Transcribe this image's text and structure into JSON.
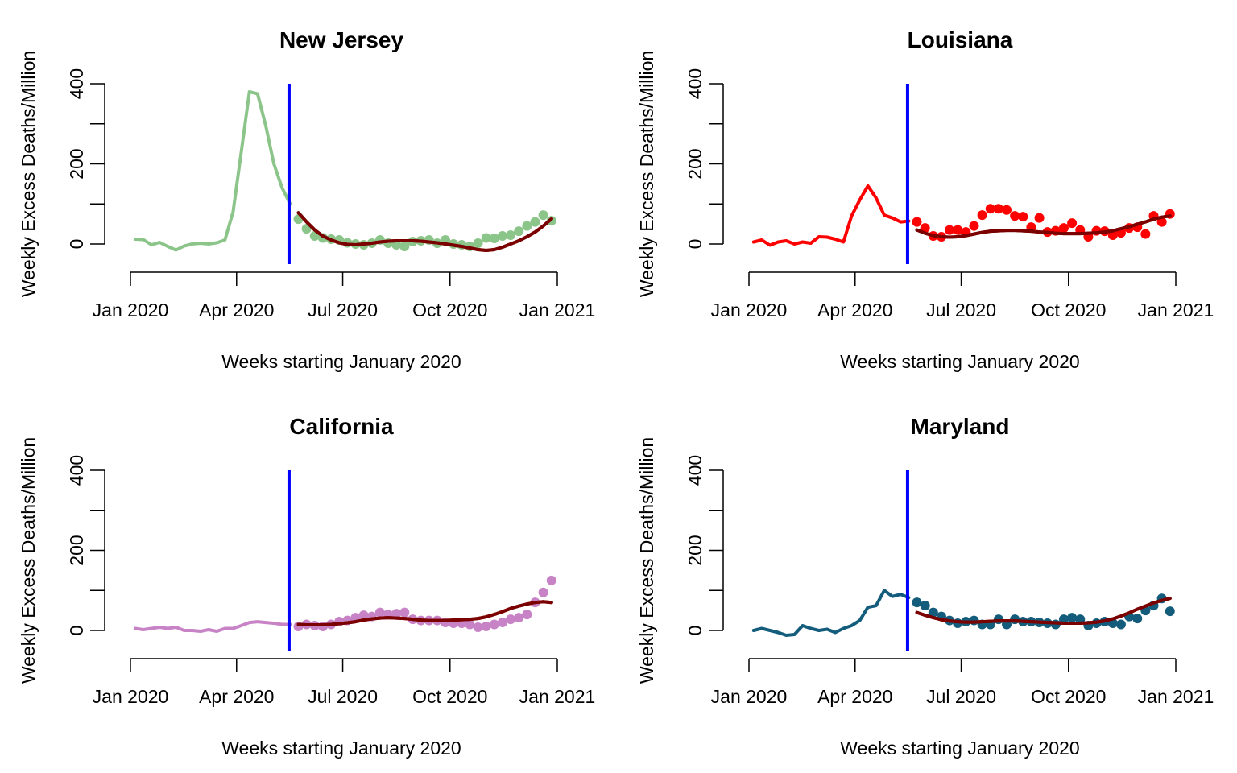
{
  "chart_data": [
    {
      "type": "line",
      "title": "New Jersey",
      "xlabel": "Weeks starting January 2020",
      "ylabel": "Weekly Excess Deaths/Million",
      "x_ticks": [
        "Jan 2020",
        "Apr 2020",
        "Jul 2020",
        "Oct 2020",
        "Jan 2021"
      ],
      "y_ticks": [
        "0",
        "200",
        "400"
      ],
      "xlim": [
        "2020-01-01",
        "2021-01-01"
      ],
      "ylim": [
        -50,
        400
      ],
      "vline_date": "2020-05-16",
      "colors": {
        "observed": "#8cc58a",
        "fit": "#7b0000",
        "vline": "#0000ff"
      },
      "series": [
        {
          "kind": "observed-line",
          "x": [
            "2020-01-05",
            "2020-01-12",
            "2020-01-19",
            "2020-01-26",
            "2020-02-02",
            "2020-02-09",
            "2020-02-16",
            "2020-02-23",
            "2020-03-01",
            "2020-03-08",
            "2020-03-15",
            "2020-03-22",
            "2020-03-29",
            "2020-04-05",
            "2020-04-12",
            "2020-04-19",
            "2020-04-26",
            "2020-05-03",
            "2020-05-10",
            "2020-05-17"
          ],
          "values": [
            12,
            11,
            -2,
            4,
            -6,
            -15,
            -5,
            0,
            2,
            0,
            3,
            10,
            80,
            230,
            380,
            375,
            295,
            200,
            140,
            100
          ]
        },
        {
          "kind": "observed-points",
          "x": [
            "2020-05-24",
            "2020-05-31",
            "2020-06-07",
            "2020-06-14",
            "2020-06-21",
            "2020-06-28",
            "2020-07-05",
            "2020-07-12",
            "2020-07-19",
            "2020-07-26",
            "2020-08-02",
            "2020-08-09",
            "2020-08-16",
            "2020-08-23",
            "2020-08-30",
            "2020-09-06",
            "2020-09-13",
            "2020-09-20",
            "2020-09-27",
            "2020-10-04",
            "2020-10-11",
            "2020-10-18",
            "2020-10-25",
            "2020-11-01",
            "2020-11-08",
            "2020-11-15",
            "2020-11-22",
            "2020-11-29",
            "2020-12-06",
            "2020-12-13",
            "2020-12-20",
            "2020-12-27"
          ],
          "values": [
            62,
            38,
            20,
            15,
            12,
            10,
            3,
            0,
            -2,
            2,
            10,
            2,
            -2,
            -6,
            6,
            8,
            10,
            2,
            10,
            0,
            -2,
            -6,
            2,
            15,
            14,
            20,
            22,
            32,
            45,
            55,
            72,
            58
          ]
        },
        {
          "kind": "fit-line",
          "x": [
            "2020-05-24",
            "2020-05-31",
            "2020-06-07",
            "2020-06-14",
            "2020-06-21",
            "2020-06-28",
            "2020-07-05",
            "2020-07-12",
            "2020-07-19",
            "2020-07-26",
            "2020-08-02",
            "2020-08-09",
            "2020-08-16",
            "2020-08-23",
            "2020-08-30",
            "2020-09-06",
            "2020-09-13",
            "2020-09-20",
            "2020-09-27",
            "2020-10-04",
            "2020-10-11",
            "2020-10-18",
            "2020-10-25",
            "2020-11-01",
            "2020-11-08",
            "2020-11-15",
            "2020-11-22",
            "2020-11-29",
            "2020-12-06",
            "2020-12-13",
            "2020-12-20",
            "2020-12-27"
          ],
          "values": [
            78,
            55,
            35,
            20,
            10,
            3,
            -1,
            -2,
            0,
            2,
            5,
            7,
            8,
            8,
            8,
            7,
            5,
            3,
            0,
            -3,
            -6,
            -10,
            -14,
            -16,
            -14,
            -8,
            0,
            8,
            18,
            30,
            45,
            63
          ]
        }
      ]
    },
    {
      "type": "line",
      "title": "Louisiana",
      "xlabel": "Weeks starting January 2020",
      "ylabel": "Weekly Excess Deaths/Million",
      "x_ticks": [
        "Jan 2020",
        "Apr 2020",
        "Jul 2020",
        "Oct 2020",
        "Jan 2021"
      ],
      "y_ticks": [
        "0",
        "200",
        "400"
      ],
      "xlim": [
        "2020-01-01",
        "2021-01-01"
      ],
      "ylim": [
        -50,
        400
      ],
      "vline_date": "2020-05-16",
      "colors": {
        "observed": "#ff0000",
        "fit": "#7b0000",
        "vline": "#0000ff"
      },
      "series": [
        {
          "kind": "observed-line",
          "x": [
            "2020-01-05",
            "2020-01-12",
            "2020-01-19",
            "2020-01-26",
            "2020-02-02",
            "2020-02-09",
            "2020-02-16",
            "2020-02-23",
            "2020-03-01",
            "2020-03-08",
            "2020-03-15",
            "2020-03-22",
            "2020-03-29",
            "2020-04-05",
            "2020-04-12",
            "2020-04-19",
            "2020-04-26",
            "2020-05-03",
            "2020-05-10",
            "2020-05-17"
          ],
          "values": [
            5,
            10,
            -3,
            5,
            8,
            0,
            5,
            2,
            18,
            17,
            12,
            5,
            70,
            110,
            145,
            115,
            72,
            65,
            55,
            57
          ]
        },
        {
          "kind": "observed-points",
          "x": [
            "2020-05-24",
            "2020-05-31",
            "2020-06-07",
            "2020-06-14",
            "2020-06-21",
            "2020-06-28",
            "2020-07-05",
            "2020-07-12",
            "2020-07-19",
            "2020-07-26",
            "2020-08-02",
            "2020-08-09",
            "2020-08-16",
            "2020-08-23",
            "2020-08-30",
            "2020-09-06",
            "2020-09-13",
            "2020-09-20",
            "2020-09-27",
            "2020-10-04",
            "2020-10-11",
            "2020-10-18",
            "2020-10-25",
            "2020-11-01",
            "2020-11-08",
            "2020-11-15",
            "2020-11-22",
            "2020-11-29",
            "2020-12-06",
            "2020-12-13",
            "2020-12-20",
            "2020-12-27"
          ],
          "values": [
            55,
            40,
            20,
            18,
            35,
            35,
            30,
            45,
            72,
            88,
            88,
            85,
            70,
            68,
            42,
            65,
            30,
            33,
            40,
            52,
            35,
            18,
            33,
            32,
            22,
            28,
            40,
            42,
            25,
            70,
            55,
            75
          ]
        },
        {
          "kind": "fit-line",
          "x": [
            "2020-05-24",
            "2020-05-31",
            "2020-06-07",
            "2020-06-14",
            "2020-06-21",
            "2020-06-28",
            "2020-07-05",
            "2020-07-12",
            "2020-07-19",
            "2020-07-26",
            "2020-08-02",
            "2020-08-09",
            "2020-08-16",
            "2020-08-23",
            "2020-08-30",
            "2020-09-06",
            "2020-09-13",
            "2020-09-20",
            "2020-09-27",
            "2020-10-04",
            "2020-10-11",
            "2020-10-18",
            "2020-10-25",
            "2020-11-01",
            "2020-11-08",
            "2020-11-15",
            "2020-11-22",
            "2020-11-29",
            "2020-12-06",
            "2020-12-13",
            "2020-12-20",
            "2020-12-27"
          ],
          "values": [
            35,
            27,
            21,
            18,
            17,
            18,
            21,
            25,
            29,
            32,
            33,
            34,
            34,
            33,
            32,
            30,
            29,
            27,
            26,
            26,
            26,
            27,
            28,
            30,
            33,
            38,
            43,
            49,
            55,
            62,
            67,
            70
          ]
        }
      ]
    },
    {
      "type": "line",
      "title": "California",
      "xlabel": "Weeks starting January 2020",
      "ylabel": "Weekly Excess Deaths/Million",
      "x_ticks": [
        "Jan 2020",
        "Apr 2020",
        "Jul 2020",
        "Oct 2020",
        "Jan 2021"
      ],
      "y_ticks": [
        "0",
        "200",
        "400"
      ],
      "xlim": [
        "2020-01-01",
        "2021-01-01"
      ],
      "ylim": [
        -50,
        400
      ],
      "vline_date": "2020-05-16",
      "colors": {
        "observed": "#c783c6",
        "fit": "#7b0000",
        "vline": "#0000ff"
      },
      "series": [
        {
          "kind": "observed-line",
          "x": [
            "2020-01-05",
            "2020-01-12",
            "2020-01-19",
            "2020-01-26",
            "2020-02-02",
            "2020-02-09",
            "2020-02-16",
            "2020-02-23",
            "2020-03-01",
            "2020-03-08",
            "2020-03-15",
            "2020-03-22",
            "2020-03-29",
            "2020-04-05",
            "2020-04-12",
            "2020-04-19",
            "2020-04-26",
            "2020-05-03",
            "2020-05-10",
            "2020-05-17"
          ],
          "values": [
            5,
            2,
            5,
            8,
            5,
            8,
            0,
            0,
            -2,
            2,
            -2,
            5,
            5,
            12,
            20,
            22,
            20,
            18,
            15,
            15
          ]
        },
        {
          "kind": "observed-points",
          "x": [
            "2020-05-24",
            "2020-05-31",
            "2020-06-07",
            "2020-06-14",
            "2020-06-21",
            "2020-06-28",
            "2020-07-05",
            "2020-07-12",
            "2020-07-19",
            "2020-07-26",
            "2020-08-02",
            "2020-08-09",
            "2020-08-16",
            "2020-08-23",
            "2020-08-30",
            "2020-09-06",
            "2020-09-13",
            "2020-09-20",
            "2020-09-27",
            "2020-10-04",
            "2020-10-11",
            "2020-10-18",
            "2020-10-25",
            "2020-11-01",
            "2020-11-08",
            "2020-11-15",
            "2020-11-22",
            "2020-11-29",
            "2020-12-06",
            "2020-12-13",
            "2020-12-20",
            "2020-12-27"
          ],
          "values": [
            10,
            15,
            12,
            10,
            15,
            22,
            25,
            32,
            38,
            35,
            45,
            40,
            42,
            45,
            28,
            25,
            25,
            25,
            20,
            18,
            18,
            15,
            8,
            10,
            15,
            20,
            28,
            32,
            40,
            70,
            95,
            125
          ]
        },
        {
          "kind": "fit-line",
          "x": [
            "2020-05-24",
            "2020-05-31",
            "2020-06-07",
            "2020-06-14",
            "2020-06-21",
            "2020-06-28",
            "2020-07-05",
            "2020-07-12",
            "2020-07-19",
            "2020-07-26",
            "2020-08-02",
            "2020-08-09",
            "2020-08-16",
            "2020-08-23",
            "2020-08-30",
            "2020-09-06",
            "2020-09-13",
            "2020-09-20",
            "2020-09-27",
            "2020-10-04",
            "2020-10-11",
            "2020-10-18",
            "2020-10-25",
            "2020-11-01",
            "2020-11-08",
            "2020-11-15",
            "2020-11-22",
            "2020-11-29",
            "2020-12-06",
            "2020-12-13",
            "2020-12-20",
            "2020-12-27"
          ],
          "values": [
            15,
            14,
            14,
            14,
            15,
            17,
            19,
            22,
            26,
            29,
            31,
            32,
            31,
            30,
            28,
            26,
            25,
            25,
            25,
            26,
            27,
            28,
            30,
            34,
            40,
            47,
            55,
            61,
            66,
            70,
            72,
            70
          ]
        }
      ]
    },
    {
      "type": "line",
      "title": "Maryland",
      "xlabel": "Weeks starting January 2020",
      "ylabel": "Weekly Excess Deaths/Million",
      "x_ticks": [
        "Jan 2020",
        "Apr 2020",
        "Jul 2020",
        "Oct 2020",
        "Jan 2021"
      ],
      "y_ticks": [
        "0",
        "200",
        "400"
      ],
      "xlim": [
        "2020-01-01",
        "2021-01-01"
      ],
      "ylim": [
        -50,
        400
      ],
      "vline_date": "2020-05-16",
      "colors": {
        "observed": "#135c7c",
        "fit": "#7b0000",
        "vline": "#0000ff"
      },
      "series": [
        {
          "kind": "observed-line",
          "x": [
            "2020-01-05",
            "2020-01-12",
            "2020-01-19",
            "2020-01-26",
            "2020-02-02",
            "2020-02-09",
            "2020-02-16",
            "2020-02-23",
            "2020-03-01",
            "2020-03-08",
            "2020-03-15",
            "2020-03-22",
            "2020-03-29",
            "2020-04-05",
            "2020-04-12",
            "2020-04-19",
            "2020-04-26",
            "2020-05-03",
            "2020-05-10",
            "2020-05-17"
          ],
          "values": [
            0,
            5,
            0,
            -5,
            -12,
            -10,
            12,
            5,
            0,
            3,
            -5,
            5,
            12,
            25,
            58,
            62,
            100,
            85,
            90,
            82
          ]
        },
        {
          "kind": "observed-points",
          "x": [
            "2020-05-24",
            "2020-05-31",
            "2020-06-07",
            "2020-06-14",
            "2020-06-21",
            "2020-06-28",
            "2020-07-05",
            "2020-07-12",
            "2020-07-19",
            "2020-07-26",
            "2020-08-02",
            "2020-08-09",
            "2020-08-16",
            "2020-08-23",
            "2020-08-30",
            "2020-09-06",
            "2020-09-13",
            "2020-09-20",
            "2020-09-27",
            "2020-10-04",
            "2020-10-11",
            "2020-10-18",
            "2020-10-25",
            "2020-11-01",
            "2020-11-08",
            "2020-11-15",
            "2020-11-22",
            "2020-11-29",
            "2020-12-06",
            "2020-12-13",
            "2020-12-20",
            "2020-12-27"
          ],
          "values": [
            70,
            62,
            45,
            35,
            25,
            18,
            22,
            25,
            15,
            15,
            28,
            15,
            28,
            22,
            22,
            20,
            18,
            15,
            28,
            32,
            28,
            12,
            18,
            22,
            18,
            15,
            35,
            30,
            50,
            62,
            80,
            48
          ]
        },
        {
          "kind": "fit-line",
          "x": [
            "2020-05-24",
            "2020-05-31",
            "2020-06-07",
            "2020-06-14",
            "2020-06-21",
            "2020-06-28",
            "2020-07-05",
            "2020-07-12",
            "2020-07-19",
            "2020-07-26",
            "2020-08-02",
            "2020-08-09",
            "2020-08-16",
            "2020-08-23",
            "2020-08-30",
            "2020-09-06",
            "2020-09-13",
            "2020-09-20",
            "2020-09-27",
            "2020-10-04",
            "2020-10-11",
            "2020-10-18",
            "2020-10-25",
            "2020-11-01",
            "2020-11-08",
            "2020-11-15",
            "2020-11-22",
            "2020-11-29",
            "2020-12-06",
            "2020-12-13",
            "2020-12-20",
            "2020-12-27"
          ],
          "values": [
            45,
            38,
            32,
            27,
            24,
            22,
            21,
            21,
            22,
            23,
            24,
            24,
            24,
            23,
            22,
            21,
            20,
            19,
            18,
            18,
            18,
            19,
            21,
            24,
            29,
            36,
            44,
            53,
            61,
            69,
            75,
            80
          ]
        }
      ]
    }
  ]
}
